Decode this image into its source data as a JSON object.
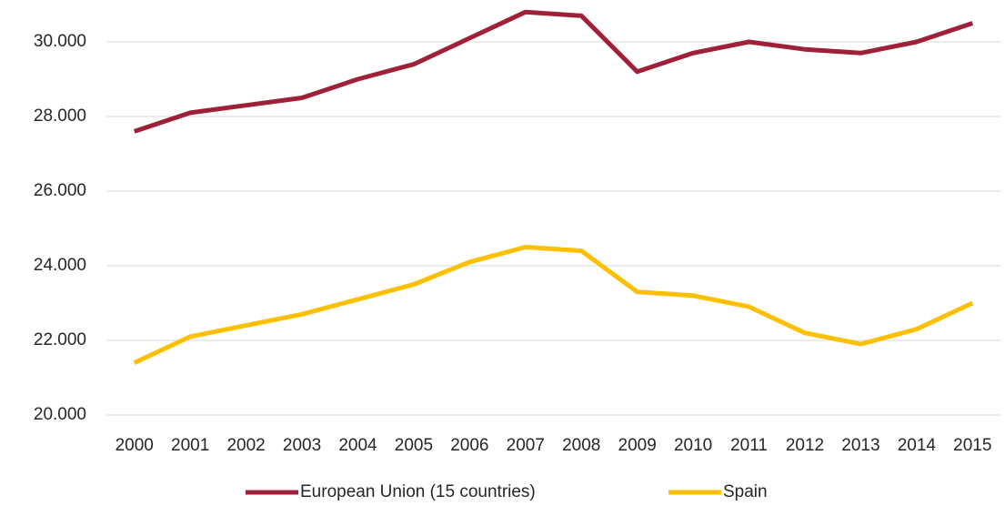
{
  "chart_data": {
    "type": "line",
    "categories": [
      "2000",
      "2001",
      "2002",
      "2003",
      "2004",
      "2005",
      "2006",
      "2007",
      "2008",
      "2009",
      "2010",
      "2011",
      "2012",
      "2013",
      "2014",
      "2015"
    ],
    "series": [
      {
        "name": "European Union (15 countries)",
        "color": "#a0203a",
        "values": [
          27600,
          28100,
          28300,
          28500,
          29000,
          29400,
          30100,
          30800,
          30700,
          29200,
          29700,
          30000,
          29800,
          29700,
          30000,
          30500
        ]
      },
      {
        "name": "Spain",
        "color": "#fcc000",
        "values": [
          21400,
          22100,
          22400,
          22700,
          23100,
          23500,
          24100,
          24500,
          24400,
          23300,
          23200,
          22900,
          22200,
          21900,
          22300,
          23000
        ]
      }
    ],
    "ylim": [
      20000,
      31000
    ],
    "yticks": [
      {
        "value": 20000,
        "label": "20.000"
      },
      {
        "value": 22000,
        "label": "22.000"
      },
      {
        "value": 24000,
        "label": "24.000"
      },
      {
        "value": 26000,
        "label": "26.000"
      },
      {
        "value": 28000,
        "label": "28.000"
      },
      {
        "value": 30000,
        "label": "30.000"
      }
    ],
    "grid": true,
    "legend": "bottom"
  }
}
